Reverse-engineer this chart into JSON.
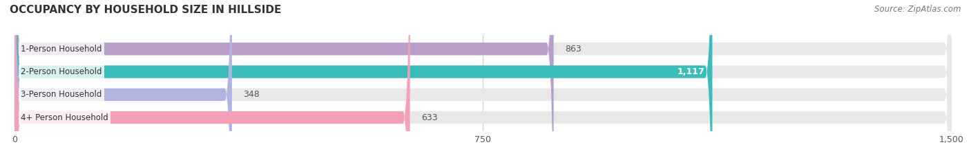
{
  "title": "OCCUPANCY BY HOUSEHOLD SIZE IN HILLSIDE",
  "source": "Source: ZipAtlas.com",
  "categories": [
    "1-Person Household",
    "2-Person Household",
    "3-Person Household",
    "4+ Person Household"
  ],
  "values": [
    863,
    1117,
    348,
    633
  ],
  "bar_colors": [
    "#b89ec8",
    "#3abcb8",
    "#b0b4e0",
    "#f4a0b8"
  ],
  "bar_bg_color": "#e8e8e8",
  "value_labels": [
    "863",
    "1,117",
    "348",
    "633"
  ],
  "value_inside": [
    false,
    true,
    false,
    false
  ],
  "xlim": [
    0,
    1500
  ],
  "xticks": [
    0,
    750,
    1500
  ],
  "background_color": "#ffffff",
  "bar_height": 0.55,
  "title_fontsize": 11,
  "source_fontsize": 8.5,
  "label_fontsize": 8.5,
  "tick_fontsize": 9,
  "value_fontsize": 9,
  "rounding_size": 12
}
